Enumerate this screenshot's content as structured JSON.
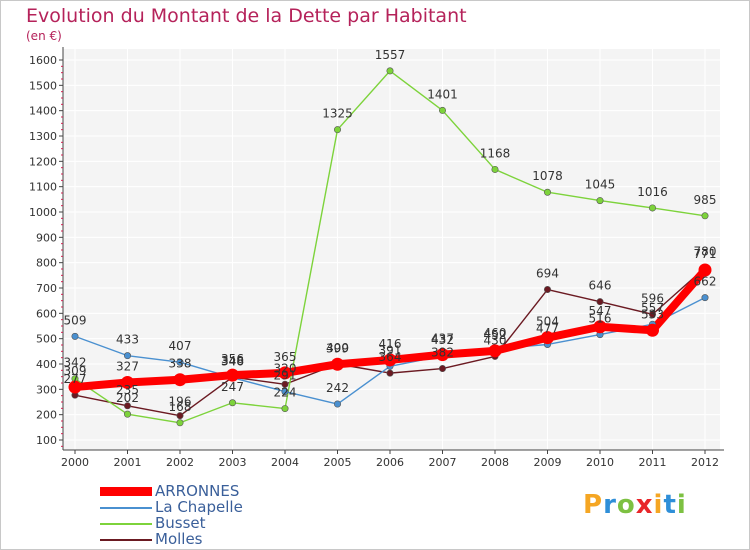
{
  "header": {
    "title": "Evolution du Montant de la Dette par Habitant",
    "unit": "(en €)"
  },
  "logo": {
    "text": "Proxiti",
    "letters": [
      "P",
      "r",
      "o",
      "x",
      "i",
      "t",
      "i"
    ],
    "colors": [
      "#f5a623",
      "#2f8fd8",
      "#7dc142",
      "#e8262a",
      "#f5a623",
      "#2f8fd8",
      "#7dc142"
    ]
  },
  "chart_data": {
    "type": "line",
    "title": "Evolution du Montant de la Dette par Habitant",
    "ylabel": "(en €)",
    "xlabel": "",
    "x": [
      "2000",
      "2001",
      "2002",
      "2003",
      "2004",
      "2005",
      "2006",
      "2007",
      "2008",
      "2009",
      "2010",
      "2011",
      "2012"
    ],
    "ylim": [
      100,
      1600
    ],
    "yticks": [
      100,
      200,
      300,
      400,
      500,
      600,
      700,
      800,
      900,
      1000,
      1100,
      1200,
      1300,
      1400,
      1500,
      1600
    ],
    "grid": true,
    "legend_position": "bottom-left",
    "series": [
      {
        "name": "Molles",
        "color": "#6b1a22",
        "values": [
          277,
          235,
          196,
          348,
          320,
          400,
          364,
          382,
          430,
          694,
          646,
          596,
          780
        ]
      },
      {
        "name": "Busset",
        "color": "#7dd33b",
        "values": [
          342,
          202,
          168,
          247,
          224,
          1325,
          1557,
          1401,
          1168,
          1078,
          1045,
          1016,
          985
        ]
      },
      {
        "name": "La Chapelle",
        "color": "#4a90d0",
        "values": [
          509,
          433,
          407,
          346,
          291,
          242,
          391,
          432,
          460,
          477,
          516,
          557,
          662
        ]
      },
      {
        "name": "ARRONNES",
        "color": "#ff0000",
        "values": [
          309,
          327,
          338,
          356,
          365,
          399,
          416,
          437,
          452,
          504,
          547,
          533,
          771
        ]
      }
    ],
    "labels": [
      {
        "text": "277",
        "x": "2000",
        "y": 277,
        "dy": -12
      },
      {
        "text": "235",
        "x": "2001",
        "y": 235,
        "dy": -12
      },
      {
        "text": "196",
        "x": "2002",
        "y": 196,
        "dy": -10
      },
      {
        "text": "348",
        "x": "2003",
        "y": 348,
        "dy": -12
      },
      {
        "text": "320",
        "x": "2004",
        "y": 320,
        "dy": -12
      },
      {
        "text": "400",
        "x": "2005",
        "y": 400,
        "dy": -12
      },
      {
        "text": "364",
        "x": "2006",
        "y": 364,
        "dy": -12
      },
      {
        "text": "382",
        "x": "2007",
        "y": 382,
        "dy": -12
      },
      {
        "text": "430",
        "x": "2008",
        "y": 430,
        "dy": -12
      },
      {
        "text": "694",
        "x": "2009",
        "y": 694,
        "dy": -12
      },
      {
        "text": "646",
        "x": "2010",
        "y": 646,
        "dy": -12
      },
      {
        "text": "596",
        "x": "2011",
        "y": 596,
        "dy": -12
      },
      {
        "text": "780",
        "x": "2012",
        "y": 780,
        "dy": -12
      },
      {
        "text": "342",
        "x": "2000",
        "y": 342,
        "dy": -12
      },
      {
        "text": "202",
        "x": "2001",
        "y": 202,
        "dy": -12
      },
      {
        "text": "168",
        "x": "2002",
        "y": 168,
        "dy": -12
      },
      {
        "text": "247",
        "x": "2003",
        "y": 247,
        "dy": -12
      },
      {
        "text": "224",
        "x": "2004",
        "y": 224,
        "dy": -12
      },
      {
        "text": "1325",
        "x": "2005",
        "y": 1325,
        "dy": -12
      },
      {
        "text": "1557",
        "x": "2006",
        "y": 1557,
        "dy": -12
      },
      {
        "text": "1401",
        "x": "2007",
        "y": 1401,
        "dy": -12
      },
      {
        "text": "1168",
        "x": "2008",
        "y": 1168,
        "dy": -12
      },
      {
        "text": "1078",
        "x": "2009",
        "y": 1078,
        "dy": -12
      },
      {
        "text": "1045",
        "x": "2010",
        "y": 1045,
        "dy": -12
      },
      {
        "text": "1016",
        "x": "2011",
        "y": 1016,
        "dy": -12
      },
      {
        "text": "985",
        "x": "2012",
        "y": 985,
        "dy": -12
      },
      {
        "text": "509",
        "x": "2000",
        "y": 509,
        "dy": -12
      },
      {
        "text": "433",
        "x": "2001",
        "y": 433,
        "dy": -12
      },
      {
        "text": "407",
        "x": "2002",
        "y": 407,
        "dy": -12
      },
      {
        "text": "346",
        "x": "2003",
        "y": 346,
        "dy": -12
      },
      {
        "text": "291",
        "x": "2004",
        "y": 291,
        "dy": -12
      },
      {
        "text": "242",
        "x": "2005",
        "y": 242,
        "dy": -12
      },
      {
        "text": "391",
        "x": "2006",
        "y": 391,
        "dy": -12
      },
      {
        "text": "432",
        "x": "2007",
        "y": 432,
        "dy": -12
      },
      {
        "text": "460",
        "x": "2008",
        "y": 460,
        "dy": -12
      },
      {
        "text": "477",
        "x": "2009",
        "y": 477,
        "dy": -12
      },
      {
        "text": "516",
        "x": "2010",
        "y": 516,
        "dy": -12
      },
      {
        "text": "557",
        "x": "2011",
        "y": 557,
        "dy": -12
      },
      {
        "text": "662",
        "x": "2012",
        "y": 662,
        "dy": -12
      },
      {
        "text": "309",
        "x": "2000",
        "y": 309,
        "dy": -12
      },
      {
        "text": "327",
        "x": "2001",
        "y": 327,
        "dy": -12
      },
      {
        "text": "338",
        "x": "2002",
        "y": 338,
        "dy": -12
      },
      {
        "text": "356",
        "x": "2003",
        "y": 356,
        "dy": -12
      },
      {
        "text": "365",
        "x": "2004",
        "y": 365,
        "dy": -12
      },
      {
        "text": "399",
        "x": "2005",
        "y": 399,
        "dy": -12
      },
      {
        "text": "416",
        "x": "2006",
        "y": 416,
        "dy": -12
      },
      {
        "text": "437",
        "x": "2007",
        "y": 437,
        "dy": -12
      },
      {
        "text": "452",
        "x": "2008",
        "y": 452,
        "dy": -12
      },
      {
        "text": "504",
        "x": "2009",
        "y": 504,
        "dy": -12
      },
      {
        "text": "547",
        "x": "2010",
        "y": 547,
        "dy": -12
      },
      {
        "text": "533",
        "x": "2011",
        "y": 533,
        "dy": -12
      },
      {
        "text": "771",
        "x": "2012",
        "y": 771,
        "dy": -12
      }
    ]
  },
  "legend": {
    "items": [
      {
        "name": "ARRONNES",
        "color": "#ff0000"
      },
      {
        "name": "La Chapelle",
        "color": "#4a90d0"
      },
      {
        "name": "Busset",
        "color": "#7dd33b"
      },
      {
        "name": "Molles",
        "color": "#6b1a22"
      }
    ]
  }
}
